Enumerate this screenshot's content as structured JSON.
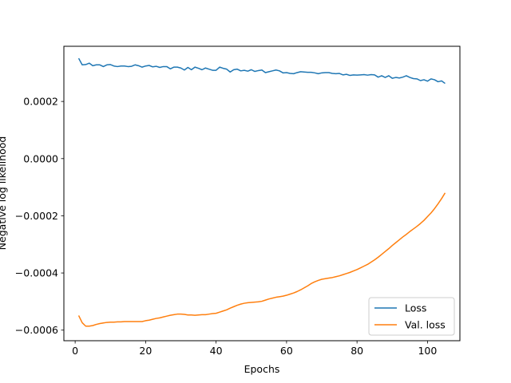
{
  "chart_data": {
    "type": "line",
    "title": "",
    "xlabel": "Epochs",
    "ylabel": "Negative log likelihood",
    "xlim": [
      -3.2,
      109.2
    ],
    "ylim": [
      -0.000637,
      0.000393
    ],
    "x_ticks": [
      0,
      20,
      40,
      60,
      80,
      100
    ],
    "x_tick_labels": [
      "0",
      "20",
      "40",
      "60",
      "80",
      "100"
    ],
    "y_ticks": [
      -0.0006,
      -0.0004,
      -0.0002,
      0.0,
      0.0002
    ],
    "y_tick_labels": [
      "−0.0006",
      "−0.0004",
      "−0.0002",
      "0.0000",
      "0.0002"
    ],
    "grid": false,
    "legend_position": "lower right",
    "x": [
      1,
      2,
      3,
      4,
      5,
      6,
      7,
      8,
      9,
      10,
      11,
      12,
      13,
      14,
      15,
      16,
      17,
      18,
      19,
      20,
      21,
      22,
      23,
      24,
      25,
      26,
      27,
      28,
      29,
      30,
      31,
      32,
      33,
      34,
      35,
      36,
      37,
      38,
      39,
      40,
      41,
      42,
      43,
      44,
      45,
      46,
      47,
      48,
      49,
      50,
      51,
      52,
      53,
      54,
      55,
      56,
      57,
      58,
      59,
      60,
      61,
      62,
      63,
      64,
      65,
      66,
      67,
      68,
      69,
      70,
      71,
      72,
      73,
      74,
      75,
      76,
      77,
      78,
      79,
      80,
      81,
      82,
      83,
      84,
      85,
      86,
      87,
      88,
      89,
      90,
      91,
      92,
      93,
      94,
      95,
      96,
      97,
      98,
      99,
      100,
      101,
      102,
      103,
      104,
      105
    ],
    "series": [
      {
        "name": "Loss",
        "color": "#1f77b4",
        "values": [
          0.000351,
          0.000328,
          0.000329,
          0.000334,
          0.000325,
          0.000328,
          0.000328,
          0.000322,
          0.000328,
          0.000329,
          0.000324,
          0.000322,
          0.000324,
          0.000324,
          0.000322,
          0.000323,
          0.000328,
          0.000325,
          0.00032,
          0.000324,
          0.000326,
          0.000321,
          0.000323,
          0.000319,
          0.000322,
          0.000322,
          0.000314,
          0.00032,
          0.00032,
          0.000317,
          0.00031,
          0.000319,
          0.000311,
          0.00032,
          0.000316,
          0.000311,
          0.000317,
          0.000313,
          0.000309,
          0.000309,
          0.00032,
          0.000316,
          0.000313,
          0.000303,
          0.000311,
          0.000313,
          0.000307,
          0.000309,
          0.000306,
          0.000311,
          0.000305,
          0.000308,
          0.00031,
          0.000301,
          0.000304,
          0.000307,
          0.00031,
          0.000307,
          0.0003,
          0.000301,
          0.000298,
          0.000297,
          0.000301,
          0.000304,
          0.000303,
          0.000302,
          0.000302,
          0.0003,
          0.000297,
          0.0003,
          0.000301,
          0.000301,
          0.000298,
          0.000297,
          0.000298,
          0.000293,
          0.000295,
          0.000291,
          0.000293,
          0.000292,
          0.000293,
          0.000294,
          0.000292,
          0.000294,
          0.000293,
          0.000285,
          0.00029,
          0.000284,
          0.00029,
          0.000281,
          0.000284,
          0.000282,
          0.000285,
          0.00029,
          0.000284,
          0.00028,
          0.000279,
          0.000273,
          0.000276,
          0.000271,
          0.000279,
          0.000276,
          0.000269,
          0.000272,
          0.000263
        ]
      },
      {
        "name": "Val. loss",
        "color": "#ff7f0e",
        "values": [
          -0.000549,
          -0.000574,
          -0.000586,
          -0.000586,
          -0.000584,
          -0.00058,
          -0.000577,
          -0.000575,
          -0.000573,
          -0.000572,
          -0.000572,
          -0.000571,
          -0.000571,
          -0.00057,
          -0.00057,
          -0.00057,
          -0.00057,
          -0.00057,
          -0.00057,
          -0.000567,
          -0.000565,
          -0.000562,
          -0.000559,
          -0.000557,
          -0.000554,
          -0.000551,
          -0.000548,
          -0.000546,
          -0.000544,
          -0.000544,
          -0.000545,
          -0.000547,
          -0.000547,
          -0.000548,
          -0.000547,
          -0.000546,
          -0.000546,
          -0.000544,
          -0.000542,
          -0.000541,
          -0.000537,
          -0.000533,
          -0.000529,
          -0.000523,
          -0.000518,
          -0.000513,
          -0.000509,
          -0.000506,
          -0.000504,
          -0.000503,
          -0.000502,
          -0.000501,
          -0.000499,
          -0.000495,
          -0.000491,
          -0.000488,
          -0.000485,
          -0.000483,
          -0.000481,
          -0.000478,
          -0.000474,
          -0.00047,
          -0.000465,
          -0.000459,
          -0.000452,
          -0.000445,
          -0.000437,
          -0.000431,
          -0.000426,
          -0.000422,
          -0.00042,
          -0.000418,
          -0.000416,
          -0.000413,
          -0.00041,
          -0.000406,
          -0.000402,
          -0.000398,
          -0.000393,
          -0.000388,
          -0.000382,
          -0.000376,
          -0.00037,
          -0.000362,
          -0.000354,
          -0.000345,
          -0.000335,
          -0.000325,
          -0.000315,
          -0.000304,
          -0.000294,
          -0.000284,
          -0.000274,
          -0.000265,
          -0.000255,
          -0.000246,
          -0.000237,
          -0.000227,
          -0.000216,
          -0.000203,
          -0.00019,
          -0.000175,
          -0.000158,
          -0.00014,
          -0.00012
        ]
      }
    ]
  }
}
